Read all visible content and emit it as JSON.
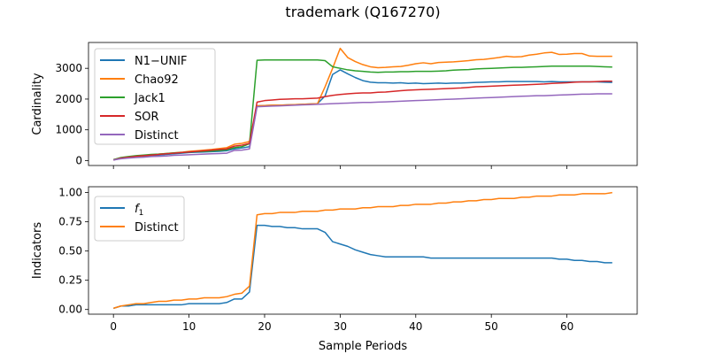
{
  "figure": {
    "title": "trademark (Q167270)"
  },
  "chart_data": [
    {
      "type": "line",
      "ylabel": "Cardinality",
      "xlabel": "",
      "xlim": [
        -3.3,
        69.3
      ],
      "ylim": [
        -160,
        3840
      ],
      "xticks": [
        0,
        10,
        20,
        30,
        40,
        50,
        60
      ],
      "yticks": [
        0,
        1000,
        2000,
        3000
      ],
      "ytick_labels": [
        "0",
        "1000",
        "2000",
        "3000"
      ],
      "show_xtick_labels": false,
      "legend": "top-left",
      "grid": false,
      "series": [
        {
          "name": "N1−UNIF",
          "color": "#1f77b4",
          "values": [
            20,
            70,
            100,
            120,
            140,
            160,
            180,
            200,
            220,
            240,
            260,
            270,
            280,
            290,
            300,
            320,
            380,
            410,
            450,
            1780,
            1790,
            1800,
            1800,
            1810,
            1820,
            1830,
            1840,
            1850,
            2100,
            2800,
            2950,
            2820,
            2700,
            2600,
            2550,
            2530,
            2530,
            2520,
            2530,
            2510,
            2520,
            2500,
            2510,
            2520,
            2510,
            2520,
            2520,
            2530,
            2540,
            2550,
            2560,
            2560,
            2570,
            2570,
            2570,
            2570,
            2570,
            2560,
            2570,
            2560,
            2560,
            2560,
            2560,
            2560,
            2560,
            2550,
            2540
          ]
        },
        {
          "name": "Chao92",
          "color": "#ff7f0e",
          "values": [
            30,
            80,
            110,
            140,
            160,
            180,
            210,
            230,
            250,
            270,
            300,
            320,
            340,
            360,
            390,
            420,
            530,
            560,
            620,
            1780,
            1790,
            1800,
            1800,
            1810,
            1820,
            1830,
            1840,
            1850,
            2400,
            3000,
            3650,
            3350,
            3220,
            3120,
            3050,
            3020,
            3030,
            3050,
            3060,
            3100,
            3150,
            3180,
            3150,
            3190,
            3200,
            3210,
            3230,
            3250,
            3280,
            3290,
            3320,
            3350,
            3390,
            3370,
            3380,
            3430,
            3460,
            3500,
            3520,
            3450,
            3460,
            3480,
            3480,
            3400,
            3390,
            3390,
            3390
          ]
        },
        {
          "name": "Jack1",
          "color": "#2ca02c",
          "values": [
            30,
            100,
            130,
            160,
            180,
            200,
            210,
            230,
            250,
            260,
            280,
            290,
            300,
            310,
            330,
            350,
            420,
            450,
            550,
            3260,
            3270,
            3270,
            3270,
            3270,
            3270,
            3270,
            3270,
            3270,
            3250,
            3050,
            3000,
            2950,
            2920,
            2900,
            2880,
            2870,
            2880,
            2880,
            2890,
            2890,
            2900,
            2900,
            2900,
            2910,
            2920,
            2940,
            2950,
            2960,
            2980,
            2990,
            3000,
            3010,
            3020,
            3030,
            3030,
            3040,
            3050,
            3060,
            3070,
            3070,
            3070,
            3070,
            3070,
            3070,
            3060,
            3050,
            3040
          ]
        },
        {
          "name": "SOR",
          "color": "#d62728",
          "values": [
            20,
            80,
            110,
            140,
            160,
            180,
            200,
            220,
            240,
            260,
            280,
            300,
            320,
            340,
            360,
            380,
            470,
            500,
            560,
            1900,
            1950,
            1970,
            1990,
            2000,
            2010,
            2010,
            2020,
            2030,
            2080,
            2120,
            2150,
            2170,
            2190,
            2200,
            2200,
            2220,
            2230,
            2250,
            2270,
            2290,
            2300,
            2310,
            2320,
            2330,
            2340,
            2350,
            2360,
            2380,
            2400,
            2410,
            2420,
            2430,
            2440,
            2450,
            2460,
            2470,
            2480,
            2490,
            2510,
            2520,
            2530,
            2550,
            2560,
            2560,
            2570,
            2580,
            2580
          ]
        },
        {
          "name": "Distinct",
          "color": "#9467bd",
          "values": [
            20,
            60,
            80,
            100,
            110,
            130,
            140,
            150,
            170,
            180,
            190,
            200,
            210,
            220,
            230,
            240,
            330,
            340,
            380,
            1750,
            1760,
            1770,
            1780,
            1790,
            1800,
            1810,
            1820,
            1830,
            1840,
            1850,
            1860,
            1870,
            1880,
            1890,
            1890,
            1900,
            1910,
            1920,
            1930,
            1940,
            1950,
            1960,
            1970,
            1980,
            1990,
            2000,
            2010,
            2020,
            2030,
            2040,
            2050,
            2060,
            2070,
            2080,
            2090,
            2100,
            2110,
            2110,
            2120,
            2130,
            2140,
            2150,
            2160,
            2160,
            2170,
            2170,
            2170
          ]
        }
      ]
    },
    {
      "type": "line",
      "ylabel": "Indicators",
      "xlabel": "Sample Periods",
      "xlim": [
        -3.3,
        69.3
      ],
      "ylim": [
        -0.04,
        1.05
      ],
      "xticks": [
        0,
        10,
        20,
        30,
        40,
        50,
        60
      ],
      "xtick_labels": [
        "0",
        "10",
        "20",
        "30",
        "40",
        "50",
        "60"
      ],
      "yticks": [
        0,
        0.25,
        0.5,
        0.75,
        1.0
      ],
      "ytick_labels": [
        "0.00",
        "0.25",
        "0.50",
        "0.75",
        "1.00"
      ],
      "show_xtick_labels": true,
      "legend": "top-left",
      "grid": false,
      "series": [
        {
          "name": "f1",
          "legend_base": "f",
          "legend_sub": "1",
          "color": "#1f77b4",
          "values": [
            0.01,
            0.03,
            0.03,
            0.04,
            0.04,
            0.04,
            0.04,
            0.04,
            0.04,
            0.04,
            0.05,
            0.05,
            0.05,
            0.05,
            0.05,
            0.06,
            0.09,
            0.09,
            0.15,
            0.72,
            0.72,
            0.71,
            0.71,
            0.7,
            0.7,
            0.69,
            0.69,
            0.69,
            0.66,
            0.58,
            0.56,
            0.54,
            0.51,
            0.49,
            0.47,
            0.46,
            0.45,
            0.45,
            0.45,
            0.45,
            0.45,
            0.45,
            0.44,
            0.44,
            0.44,
            0.44,
            0.44,
            0.44,
            0.44,
            0.44,
            0.44,
            0.44,
            0.44,
            0.44,
            0.44,
            0.44,
            0.44,
            0.44,
            0.44,
            0.43,
            0.43,
            0.42,
            0.42,
            0.41,
            0.41,
            0.4,
            0.4
          ]
        },
        {
          "name": "Distinct",
          "color": "#ff7f0e",
          "values": [
            0.01,
            0.03,
            0.04,
            0.05,
            0.05,
            0.06,
            0.07,
            0.07,
            0.08,
            0.08,
            0.09,
            0.09,
            0.1,
            0.1,
            0.1,
            0.11,
            0.13,
            0.14,
            0.2,
            0.81,
            0.82,
            0.82,
            0.83,
            0.83,
            0.83,
            0.84,
            0.84,
            0.84,
            0.85,
            0.85,
            0.86,
            0.86,
            0.86,
            0.87,
            0.87,
            0.88,
            0.88,
            0.88,
            0.89,
            0.89,
            0.9,
            0.9,
            0.9,
            0.91,
            0.91,
            0.92,
            0.92,
            0.93,
            0.93,
            0.94,
            0.94,
            0.95,
            0.95,
            0.95,
            0.96,
            0.96,
            0.97,
            0.97,
            0.97,
            0.98,
            0.98,
            0.98,
            0.99,
            0.99,
            0.99,
            0.99,
            1.0
          ]
        }
      ]
    }
  ]
}
